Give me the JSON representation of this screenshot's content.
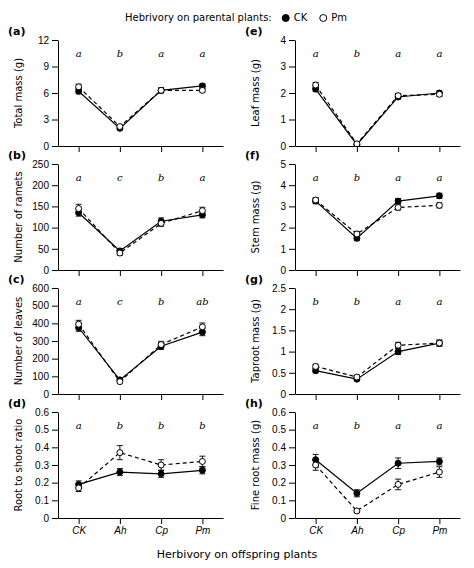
{
  "chart_data": [
    {
      "type": "line",
      "title": "(a)",
      "ylabel": "Total mass (g)",
      "categories": [
        "CK",
        "Ah",
        "Cp",
        "Pm"
      ],
      "annotations": [
        "Hebrivory on parental plants:"
      ],
      "legend": "top",
      "tick_labels": "y",
      "series": [
        {
          "name": "CK",
          "color": "#000000",
          "marker": "circle",
          "line_style": "solid",
          "values": [
            6.2,
            2.0,
            6.3,
            6.8
          ],
          "errors": [
            0.3,
            0.15,
            0.3,
            0.25
          ]
        },
        {
          "name": "Pm",
          "color": "#000000",
          "marker": "open-circle",
          "line_style": "dashed",
          "values": [
            6.7,
            2.2,
            6.3,
            6.3
          ],
          "errors": [
            0.3,
            0.2,
            0.25,
            0.2
          ]
        }
      ],
      "ylim": [
        0,
        12
      ],
      "yticks": [
        0,
        3,
        6,
        9,
        12
      ],
      "sig": [
        "a",
        "b",
        "a",
        "a"
      ]
    },
    {
      "type": "line",
      "title": "(b)",
      "ylabel": "Number of ramets",
      "categories": [
        "CK",
        "Ah",
        "Cp",
        "Pm"
      ],
      "tick_labels": "y",
      "series": [
        {
          "name": "CK",
          "color": "#000000",
          "marker": "circle",
          "line_style": "solid",
          "values": [
            135,
            45,
            115,
            130
          ],
          "errors": [
            8,
            5,
            8,
            7
          ]
        },
        {
          "name": "Pm",
          "color": "#000000",
          "marker": "open-circle",
          "line_style": "dashed",
          "values": [
            145,
            40,
            110,
            140
          ],
          "errors": [
            10,
            5,
            7,
            8
          ]
        }
      ],
      "ylim": [
        0,
        250
      ],
      "yticks": [
        0,
        50,
        100,
        150,
        200,
        250
      ],
      "sig": [
        "a",
        "c",
        "b",
        "a"
      ]
    },
    {
      "type": "line",
      "title": "(c)",
      "ylabel": "Number of leaves",
      "categories": [
        "CK",
        "Ah",
        "Cp",
        "Pm"
      ],
      "tick_labels": "y",
      "series": [
        {
          "name": "CK",
          "color": "#000000",
          "marker": "circle",
          "line_style": "solid",
          "values": [
            375,
            80,
            270,
            350
          ],
          "errors": [
            20,
            8,
            18,
            20
          ]
        },
        {
          "name": "Pm",
          "color": "#000000",
          "marker": "open-circle",
          "line_style": "dashed",
          "values": [
            395,
            70,
            280,
            380
          ],
          "errors": [
            22,
            8,
            18,
            22
          ]
        }
      ],
      "ylim": [
        0,
        600
      ],
      "yticks": [
        0,
        100,
        200,
        300,
        400,
        500,
        600
      ],
      "sig": [
        "a",
        "c",
        "b",
        "ab"
      ]
    },
    {
      "type": "line",
      "title": "(d)",
      "ylabel": "Root to shoot ratio",
      "xlabel": "Herbivory on offspring plants",
      "categories": [
        "CK",
        "Ah",
        "Cp",
        "Pm"
      ],
      "series": [
        {
          "name": "CK",
          "color": "#000000",
          "marker": "circle",
          "line_style": "solid",
          "values": [
            0.19,
            0.26,
            0.25,
            0.27
          ],
          "errors": [
            0.02,
            0.02,
            0.02,
            0.02
          ]
        },
        {
          "name": "Pm",
          "color": "#000000",
          "marker": "open-circle",
          "line_style": "dashed",
          "values": [
            0.17,
            0.37,
            0.3,
            0.32
          ],
          "errors": [
            0.02,
            0.04,
            0.03,
            0.03
          ]
        }
      ],
      "ylim": [
        0,
        0.6
      ],
      "yticks": [
        0,
        0.1,
        0.2,
        0.3,
        0.4,
        0.5,
        0.6
      ],
      "sig": [
        "a",
        "b",
        "b",
        "b"
      ]
    },
    {
      "type": "line",
      "title": "(e)",
      "ylabel": "Leaf mass (g)",
      "categories": [
        "CK",
        "Ah",
        "Cp",
        "Pm"
      ],
      "tick_labels": "y",
      "series": [
        {
          "name": "CK",
          "color": "#000000",
          "marker": "circle",
          "line_style": "solid",
          "values": [
            2.15,
            0.05,
            1.85,
            2.0
          ],
          "errors": [
            0.1,
            0.01,
            0.08,
            0.08
          ]
        },
        {
          "name": "Pm",
          "color": "#000000",
          "marker": "open-circle",
          "line_style": "dashed",
          "values": [
            2.3,
            0.08,
            1.9,
            1.95
          ],
          "errors": [
            0.1,
            0.02,
            0.08,
            0.08
          ]
        }
      ],
      "ylim": [
        0,
        4
      ],
      "yticks": [
        0,
        1,
        2,
        3,
        4
      ],
      "sig": [
        "a",
        "b",
        "a",
        "a"
      ]
    },
    {
      "type": "line",
      "title": "(f)",
      "ylabel": "Stem mass (g)",
      "categories": [
        "CK",
        "Ah",
        "Cp",
        "Pm"
      ],
      "tick_labels": "y",
      "series": [
        {
          "name": "CK",
          "color": "#000000",
          "marker": "circle",
          "line_style": "solid",
          "values": [
            3.25,
            1.5,
            3.25,
            3.5
          ],
          "errors": [
            0.12,
            0.12,
            0.12,
            0.12
          ]
        },
        {
          "name": "Pm",
          "color": "#000000",
          "marker": "open-circle",
          "line_style": "dashed",
          "values": [
            3.3,
            1.7,
            2.95,
            3.05
          ],
          "errors": [
            0.12,
            0.12,
            0.12,
            0.12
          ]
        }
      ],
      "ylim": [
        0,
        5
      ],
      "yticks": [
        0,
        1,
        2,
        3,
        4,
        5
      ],
      "sig": [
        "a",
        "b",
        "a",
        "a"
      ]
    },
    {
      "type": "line",
      "title": "(g)",
      "ylabel": "Taproot mass (g)",
      "categories": [
        "CK",
        "Ah",
        "Cp",
        "Pm"
      ],
      "tick_labels": "y",
      "series": [
        {
          "name": "CK",
          "color": "#000000",
          "marker": "circle",
          "line_style": "solid",
          "values": [
            0.55,
            0.35,
            1.0,
            1.2
          ],
          "errors": [
            0.05,
            0.04,
            0.07,
            0.07
          ]
        },
        {
          "name": "Pm",
          "color": "#000000",
          "marker": "open-circle",
          "line_style": "dashed",
          "values": [
            0.65,
            0.4,
            1.15,
            1.2
          ],
          "errors": [
            0.05,
            0.04,
            0.07,
            0.07
          ]
        }
      ],
      "ylim": [
        0,
        2.5
      ],
      "yticks": [
        0,
        0.5,
        1,
        1.5,
        2,
        2.5
      ],
      "sig": [
        "b",
        "b",
        "a",
        "a"
      ]
    },
    {
      "type": "line",
      "title": "(h)",
      "ylabel": "Fine root mass (g)",
      "categories": [
        "CK",
        "Ah",
        "Cp",
        "Pm"
      ],
      "series": [
        {
          "name": "CK",
          "color": "#000000",
          "marker": "circle",
          "line_style": "solid",
          "values": [
            0.33,
            0.14,
            0.31,
            0.32
          ],
          "errors": [
            0.03,
            0.02,
            0.03,
            0.02
          ]
        },
        {
          "name": "Pm",
          "color": "#000000",
          "marker": "open-circle",
          "line_style": "dashed",
          "values": [
            0.3,
            0.04,
            0.19,
            0.26
          ],
          "errors": [
            0.03,
            0.01,
            0.03,
            0.03
          ]
        }
      ],
      "ylim": [
        0,
        0.6
      ],
      "yticks": [
        0,
        0.1,
        0.2,
        0.3,
        0.4,
        0.5,
        0.6
      ],
      "sig": [
        "a",
        "b",
        "a",
        "a"
      ]
    }
  ]
}
